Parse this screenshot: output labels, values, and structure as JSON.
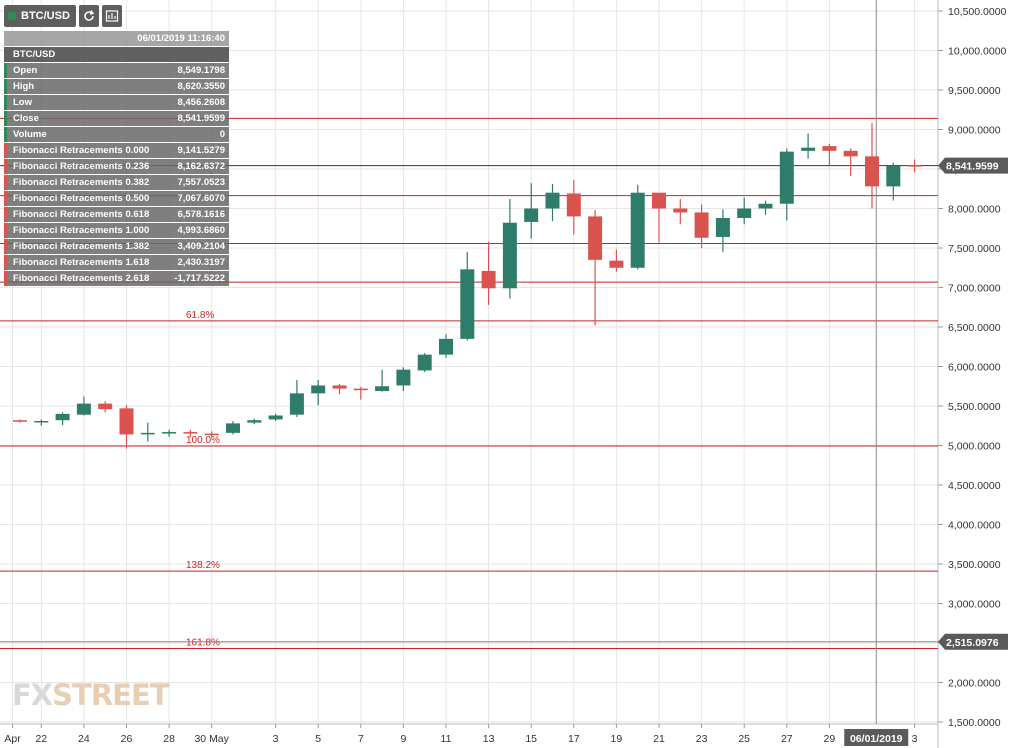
{
  "toolbar": {
    "symbol": "BTC/USD",
    "refresh_icon": "refresh-icon",
    "chart_settings_icon": "chart-settings-icon"
  },
  "info_panel": {
    "timestamp": "06/01/2019 11:16:40",
    "symbol": "BTC/USD",
    "ohlc": [
      {
        "label": "Open",
        "value": "8,549.1798"
      },
      {
        "label": "High",
        "value": "8,620.3550"
      },
      {
        "label": "Low",
        "value": "8,456.2608"
      },
      {
        "label": "Close",
        "value": "8,541.9599"
      },
      {
        "label": "Volume",
        "value": "0"
      }
    ],
    "fib": [
      {
        "label": "Fibonacci Retracements 0.000",
        "value": "9,141.5279"
      },
      {
        "label": "Fibonacci Retracements 0.236",
        "value": "8,162.6372"
      },
      {
        "label": "Fibonacci Retracements 0.382",
        "value": "7,557.0523"
      },
      {
        "label": "Fibonacci Retracements 0.500",
        "value": "7,067.6070"
      },
      {
        "label": "Fibonacci Retracements 0.618",
        "value": "6,578.1616"
      },
      {
        "label": "Fibonacci Retracements 1.000",
        "value": "4,993.6860"
      },
      {
        "label": "Fibonacci Retracements 1.382",
        "value": "3,409.2104"
      },
      {
        "label": "Fibonacci Retracements 1.618",
        "value": "2,430.3197"
      },
      {
        "label": "Fibonacci Retracements 2.618",
        "value": "-1,717.5222"
      }
    ]
  },
  "logo": {
    "fx": "FX",
    "street": "STREET"
  },
  "colors": {
    "up": "#2e7d6a",
    "down": "#d9534f",
    "fib_line": "#cc2222",
    "price_line": "#1f3b57",
    "grid": "#e6e6e6"
  },
  "chart_data": {
    "type": "candlestick",
    "symbol": "BTC/USD",
    "ylim": [
      1500,
      10500
    ],
    "y_ticks": [
      {
        "v": 10500,
        "label": "10,500.0000"
      },
      {
        "v": 10000,
        "label": "10,000.0000"
      },
      {
        "v": 9500,
        "label": "9,500.0000"
      },
      {
        "v": 9000,
        "label": "9,000.0000"
      },
      {
        "v": 8500,
        "label": "8,500.0000"
      },
      {
        "v": 8000,
        "label": "8,000.0000"
      },
      {
        "v": 7500,
        "label": "7,500.0000"
      },
      {
        "v": 7000,
        "label": "7,000.0000"
      },
      {
        "v": 6500,
        "label": "6,500.0000"
      },
      {
        "v": 6000,
        "label": "6,000.0000"
      },
      {
        "v": 5500,
        "label": "5,500.0000"
      },
      {
        "v": 5000,
        "label": "5,000.0000"
      },
      {
        "v": 4500,
        "label": "4,500.0000"
      },
      {
        "v": 4000,
        "label": "4,000.0000"
      },
      {
        "v": 3500,
        "label": "3,500.0000"
      },
      {
        "v": 3000,
        "label": "3,000.0000"
      },
      {
        "v": 2500,
        "label": "2,500.0000"
      },
      {
        "v": 2000,
        "label": "2,000.0000"
      },
      {
        "v": 1500,
        "label": "1,500.0000"
      }
    ],
    "x_ticks": [
      {
        "i": -0.35,
        "label": "Apr"
      },
      {
        "i": 1,
        "label": "22"
      },
      {
        "i": 3,
        "label": "24"
      },
      {
        "i": 5,
        "label": "26"
      },
      {
        "i": 7,
        "label": "28"
      },
      {
        "i": 9,
        "label": "30 May"
      },
      {
        "i": 12,
        "label": "3"
      },
      {
        "i": 14,
        "label": "5"
      },
      {
        "i": 16,
        "label": "7"
      },
      {
        "i": 18,
        "label": "9"
      },
      {
        "i": 20,
        "label": "11"
      },
      {
        "i": 22,
        "label": "13"
      },
      {
        "i": 24,
        "label": "15"
      },
      {
        "i": 26,
        "label": "17"
      },
      {
        "i": 28,
        "label": "19"
      },
      {
        "i": 30,
        "label": "21"
      },
      {
        "i": 32,
        "label": "23"
      },
      {
        "i": 34,
        "label": "25"
      },
      {
        "i": 36,
        "label": "27"
      },
      {
        "i": 38,
        "label": "29"
      },
      {
        "i": 42,
        "label": "3"
      }
    ],
    "cursor": {
      "i": 40.2,
      "label": "06/01/2019"
    },
    "candles": [
      {
        "o": 5320,
        "h": 5330,
        "l": 5290,
        "c": 5310
      },
      {
        "o": 5300,
        "h": 5330,
        "l": 5250,
        "c": 5310
      },
      {
        "o": 5320,
        "h": 5420,
        "l": 5260,
        "c": 5400
      },
      {
        "o": 5390,
        "h": 5620,
        "l": 5380,
        "c": 5530
      },
      {
        "o": 5530,
        "h": 5560,
        "l": 5420,
        "c": 5460
      },
      {
        "o": 5470,
        "h": 5510,
        "l": 4960,
        "c": 5140
      },
      {
        "o": 5150,
        "h": 5290,
        "l": 5050,
        "c": 5160
      },
      {
        "o": 5160,
        "h": 5200,
        "l": 5110,
        "c": 5170
      },
      {
        "o": 5170,
        "h": 5200,
        "l": 5110,
        "c": 5160
      },
      {
        "o": 5150,
        "h": 5180,
        "l": 5110,
        "c": 5140
      },
      {
        "o": 5160,
        "h": 5310,
        "l": 5140,
        "c": 5280
      },
      {
        "o": 5290,
        "h": 5340,
        "l": 5270,
        "c": 5320
      },
      {
        "o": 5330,
        "h": 5400,
        "l": 5310,
        "c": 5380
      },
      {
        "o": 5390,
        "h": 5830,
        "l": 5360,
        "c": 5660
      },
      {
        "o": 5660,
        "h": 5830,
        "l": 5510,
        "c": 5760
      },
      {
        "o": 5760,
        "h": 5780,
        "l": 5650,
        "c": 5720
      },
      {
        "o": 5720,
        "h": 5740,
        "l": 5580,
        "c": 5700
      },
      {
        "o": 5690,
        "h": 5960,
        "l": 5680,
        "c": 5750
      },
      {
        "o": 5760,
        "h": 5990,
        "l": 5690,
        "c": 5960
      },
      {
        "o": 5950,
        "h": 6170,
        "l": 5930,
        "c": 6150
      },
      {
        "o": 6150,
        "h": 6410,
        "l": 6110,
        "c": 6350
      },
      {
        "o": 6350,
        "h": 7450,
        "l": 6330,
        "c": 7230
      },
      {
        "o": 7210,
        "h": 7580,
        "l": 6780,
        "c": 6990
      },
      {
        "o": 6990,
        "h": 8120,
        "l": 6860,
        "c": 7820
      },
      {
        "o": 7830,
        "h": 8320,
        "l": 7620,
        "c": 8000
      },
      {
        "o": 8000,
        "h": 8310,
        "l": 7840,
        "c": 8200
      },
      {
        "o": 8190,
        "h": 8360,
        "l": 7670,
        "c": 7900
      },
      {
        "o": 7900,
        "h": 7980,
        "l": 6520,
        "c": 7350
      },
      {
        "o": 7340,
        "h": 7480,
        "l": 7200,
        "c": 7250
      },
      {
        "o": 7250,
        "h": 8300,
        "l": 7230,
        "c": 8200
      },
      {
        "o": 8200,
        "h": 8200,
        "l": 7570,
        "c": 8000
      },
      {
        "o": 8000,
        "h": 8120,
        "l": 7800,
        "c": 7950
      },
      {
        "o": 7950,
        "h": 8050,
        "l": 7500,
        "c": 7630
      },
      {
        "o": 7640,
        "h": 7990,
        "l": 7450,
        "c": 7880
      },
      {
        "o": 7880,
        "h": 8140,
        "l": 7800,
        "c": 8000
      },
      {
        "o": 8000,
        "h": 8100,
        "l": 7920,
        "c": 8060
      },
      {
        "o": 8060,
        "h": 8760,
        "l": 7850,
        "c": 8720
      },
      {
        "o": 8730,
        "h": 8950,
        "l": 8630,
        "c": 8770
      },
      {
        "o": 8790,
        "h": 8820,
        "l": 8550,
        "c": 8730
      },
      {
        "o": 8730,
        "h": 8760,
        "l": 8410,
        "c": 8660
      },
      {
        "o": 8660,
        "h": 9080,
        "l": 8000,
        "c": 8280
      },
      {
        "o": 8280,
        "h": 8580,
        "l": 8100,
        "c": 8540
      },
      {
        "o": 8549.1798,
        "h": 8620.355,
        "l": 8456.2608,
        "c": 8541.9599
      }
    ],
    "fib_levels": [
      {
        "value": 9141.5279
      },
      {
        "value": 8162.6372
      },
      {
        "value": 7557.0523
      },
      {
        "value": 7067.607
      },
      {
        "value": 6578.1616,
        "label": "61.8%"
      },
      {
        "value": 4993.686,
        "label": "100.0%"
      },
      {
        "value": 3409.2104,
        "label": "138.2%"
      },
      {
        "value": 2430.3197,
        "label": "161.8%"
      }
    ],
    "current_price": {
      "value": 8541.9599,
      "label": "8,541.9599"
    },
    "crosshair_price": {
      "value": 2515.0976,
      "label": "2,515.0976"
    }
  }
}
